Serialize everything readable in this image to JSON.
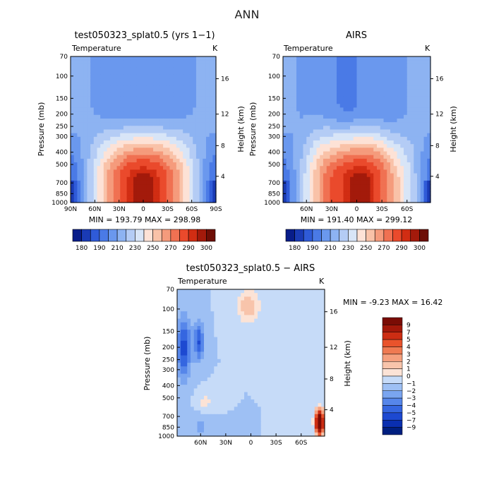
{
  "figure": {
    "title": "ANN"
  },
  "chart_data": [
    {
      "type": "heatmap",
      "title": "test050323_splat0.5 (yrs 1−1)",
      "subtitle_left": "Temperature",
      "subtitle_right": "K",
      "xlabel": "",
      "ylabel": "Pressure (mb)",
      "y2label": "Height (km)",
      "x_ticks": [
        "90N",
        "60N",
        "30N",
        "0",
        "30S",
        "60S",
        "90S"
      ],
      "y_ticks": [
        "70",
        "100",
        "150",
        "200",
        "250",
        "300",
        "400",
        "500",
        "700",
        "850",
        "1000"
      ],
      "y2_ticks": [
        "4",
        "8",
        "12",
        "16"
      ],
      "min_max_text": "MIN = 193.79   MAX = 298.98",
      "min": 193.79,
      "max": 298.98,
      "colorbar_labels": [
        "180",
        "190",
        "210",
        "230",
        "250",
        "270",
        "290",
        "300"
      ]
    },
    {
      "type": "heatmap",
      "title": "AIRS",
      "subtitle_left": "Temperature",
      "subtitle_right": "K",
      "xlabel": "",
      "ylabel": "Pressure (mb)",
      "y2label": "Height (km)",
      "x_ticks": [
        "60N",
        "30N",
        "0",
        "30S",
        "60S"
      ],
      "y_ticks": [
        "70",
        "100",
        "150",
        "200",
        "250",
        "300",
        "400",
        "500",
        "700",
        "850",
        "1000"
      ],
      "y2_ticks": [
        "4",
        "8",
        "12",
        "16"
      ],
      "min_max_text": "MIN = 191.40   MAX = 299.12",
      "min": 191.4,
      "max": 299.12,
      "colorbar_labels": [
        "180",
        "190",
        "210",
        "230",
        "250",
        "270",
        "290",
        "300"
      ]
    },
    {
      "type": "heatmap",
      "title": "test050323_splat0.5 − AIRS",
      "subtitle_left": "Temperature",
      "subtitle_right": "K",
      "xlabel": "",
      "ylabel": "Pressure (mb)",
      "y2label": "Height (km)",
      "x_ticks": [
        "60N",
        "30N",
        "0",
        "30S",
        "60S"
      ],
      "y_ticks": [
        "70",
        "100",
        "150",
        "200",
        "250",
        "300",
        "400",
        "500",
        "700",
        "850",
        "1000"
      ],
      "y2_ticks": [
        "4",
        "8",
        "12",
        "16"
      ],
      "min_max_text": "MIN =    -9.23   MAX =   16.42",
      "min": -9.23,
      "max": 16.42,
      "colorbar_labels": [
        "9",
        "7",
        "5",
        "4",
        "3",
        "2",
        "1",
        "0",
        "−1",
        "−2",
        "−3",
        "−4",
        "−5",
        "−7",
        "−9"
      ]
    }
  ],
  "palettes": {
    "absolute": [
      "#081d8a",
      "#1a3bb5",
      "#2f5bd8",
      "#4a7ae6",
      "#6a98ee",
      "#8db3f2",
      "#b4ccf5",
      "#d8e5f7",
      "#fde2d6",
      "#f9c2a8",
      "#f59b7c",
      "#f07152",
      "#ea4a2c",
      "#d12d13",
      "#a31a0b",
      "#6e0e06"
    ],
    "diff": [
      "#001f80",
      "#0a2fb0",
      "#1d49d1",
      "#3566e0",
      "#5686ea",
      "#7aa5f0",
      "#9ec0f4",
      "#c6dbf8",
      "#fce3d6",
      "#f8c4ab",
      "#f5a07e",
      "#ef7a52",
      "#e9532c",
      "#cc2d13",
      "#a3180a",
      "#7a0c05"
    ]
  }
}
